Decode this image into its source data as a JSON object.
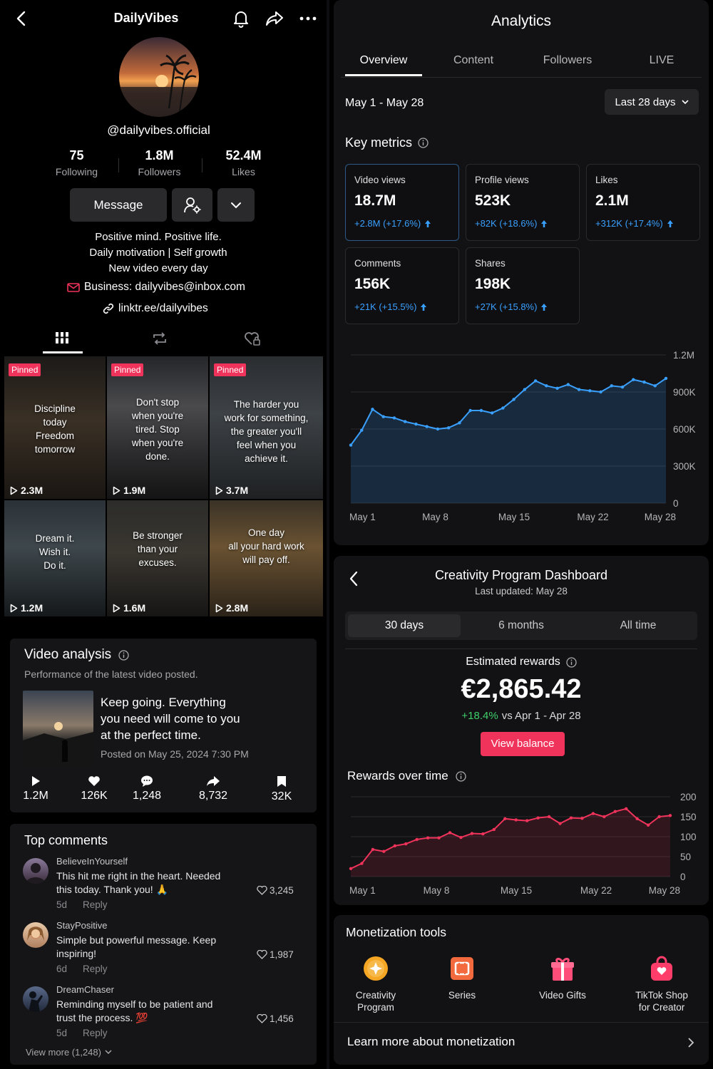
{
  "profile": {
    "title": "DailyVibes",
    "handle": "@dailyvibes.official",
    "stats": [
      {
        "value": "75",
        "label": "Following"
      },
      {
        "value": "1.8M",
        "label": "Followers"
      },
      {
        "value": "52.4M",
        "label": "Likes"
      }
    ],
    "message_label": "Message",
    "bio": [
      "Positive mind. Positive life.",
      "Daily motivation | Self growth",
      "New video every day"
    ],
    "email": "Business: dailyvibes@inbox.com",
    "link": "linktr.ee/dailyvibes"
  },
  "videos": [
    {
      "pinned": "Pinned",
      "quote": [
        "Discipline",
        "today",
        "Freedom",
        "tomorrow"
      ],
      "views": "2.3M"
    },
    {
      "pinned": "Pinned",
      "quote": [
        "Don't stop",
        "when you're",
        "tired. Stop",
        "when you're",
        "done."
      ],
      "views": "1.9M"
    },
    {
      "pinned": "Pinned",
      "quote": [
        "The harder you",
        "work for something,",
        "the greater you'll",
        "feel when you",
        "achieve it."
      ],
      "views": "3.7M"
    },
    {
      "pinned": "",
      "quote": [
        "Dream it.",
        "Wish it.",
        "Do it."
      ],
      "views": "1.2M"
    },
    {
      "pinned": "",
      "quote": [
        "Be stronger",
        "than your",
        "excuses."
      ],
      "views": "1.6M"
    },
    {
      "pinned": "",
      "quote": [
        "One day",
        "all your hard work",
        "will pay off."
      ],
      "views": "2.8M"
    }
  ],
  "video_analysis": {
    "title": "Video analysis",
    "subtitle": "Performance of the latest video posted.",
    "caption": [
      "Keep going. Everything",
      "you need will come to you",
      "at the perfect time."
    ],
    "posted": "Posted on May 25, 2024 7:30 PM",
    "stats": {
      "plays": "1.2M",
      "likes": "126K",
      "comments": "1,248",
      "shares": "8,732",
      "saves": "32K"
    }
  },
  "top_comments": {
    "title": "Top comments",
    "items": [
      {
        "user": "BelieveInYourself",
        "text": [
          "This hit me right in the heart. Needed",
          "this today. Thank you! 🙏"
        ],
        "age": "5d",
        "reply": "Reply",
        "likes": "3,245"
      },
      {
        "user": "StayPositive",
        "text": [
          "Simple but powerful message. Keep",
          "inspiring!"
        ],
        "age": "6d",
        "reply": "Reply",
        "likes": "1,987"
      },
      {
        "user": "DreamChaser",
        "text": [
          "Reminding myself to be patient and",
          "trust the process. 💯"
        ],
        "age": "5d",
        "reply": "Reply",
        "likes": "1,456"
      }
    ],
    "view_more": "View more (1,248)"
  },
  "analytics": {
    "title": "Analytics",
    "tabs": [
      "Overview",
      "Content",
      "Followers",
      "LIVE"
    ],
    "date_range": "May 1 - May 28",
    "range_select": "Last 28 days",
    "key_metrics_title": "Key metrics",
    "metrics": [
      {
        "label": "Video views",
        "value": "18.7M",
        "change": "+2.8M (+17.6%)"
      },
      {
        "label": "Profile views",
        "value": "523K",
        "change": "+82K (+18.6%)"
      },
      {
        "label": "Likes",
        "value": "2.1M",
        "change": "+312K (+17.4%)"
      },
      {
        "label": "Comments",
        "value": "156K",
        "change": "+21K (+15.5%)"
      },
      {
        "label": "Shares",
        "value": "198K",
        "change": "+27K (+15.8%)"
      }
    ],
    "accent": "#3aa0ff"
  },
  "creativity": {
    "title": "Creativity Program Dashboard",
    "updated": "Last updated: May 28",
    "periods": [
      "30 days",
      "6 months",
      "All time"
    ],
    "rewards_label": "Estimated rewards",
    "rewards_value": "€2,865.42",
    "rewards_change": "+18.4%",
    "rewards_compare": "vs Apr 1 - Apr 28",
    "balance_button": "View balance",
    "rewards_chart_title": "Rewards over time",
    "accent": "#f0335a"
  },
  "monetization": {
    "title": "Monetization tools",
    "tools": [
      {
        "label": [
          "Creativity",
          "Program"
        ],
        "icon": "creativity-program-icon"
      },
      {
        "label": [
          "Series"
        ],
        "icon": "series-icon"
      },
      {
        "label": [
          "Video Gifts"
        ],
        "icon": "gift-icon"
      },
      {
        "label": [
          "TikTok Shop",
          "for Creator"
        ],
        "icon": "shop-bag-icon"
      }
    ],
    "learn_more": "Learn more about monetization"
  },
  "chart_data": [
    {
      "type": "area",
      "x_ticks": [
        "May 1",
        "May 8",
        "May 15",
        "May 22",
        "May 28"
      ],
      "y_ticks": [
        "0",
        "300K",
        "600K",
        "900K",
        "1.2M"
      ],
      "ylim": [
        0,
        1200000
      ],
      "grid": true,
      "x": [
        1,
        2,
        3,
        4,
        5,
        6,
        7,
        8,
        9,
        10,
        11,
        12,
        13,
        14,
        15,
        16,
        17,
        18,
        19,
        20,
        21,
        22,
        23,
        24,
        25,
        26,
        27,
        28,
        29,
        30
      ],
      "values": [
        470000,
        590000,
        760000,
        700000,
        690000,
        660000,
        640000,
        620000,
        600000,
        610000,
        650000,
        750000,
        750000,
        730000,
        770000,
        840000,
        920000,
        990000,
        950000,
        930000,
        960000,
        920000,
        910000,
        900000,
        950000,
        940000,
        1000000,
        980000,
        950000,
        1010000
      ]
    },
    {
      "type": "area",
      "x_ticks": [
        "May 1",
        "May 8",
        "May 15",
        "May 22",
        "May 28"
      ],
      "y_ticks": [
        "0",
        "50",
        "100",
        "150",
        "200"
      ],
      "ylim": [
        0,
        200
      ],
      "grid": true,
      "x": [
        1,
        2,
        3,
        4,
        5,
        6,
        7,
        8,
        9,
        10,
        11,
        12,
        13,
        14,
        15,
        16,
        17,
        18,
        19,
        20,
        21,
        22,
        23,
        24,
        25,
        26,
        27,
        28,
        29,
        30
      ],
      "values": [
        20,
        33,
        68,
        63,
        77,
        82,
        93,
        97,
        97,
        110,
        98,
        108,
        107,
        118,
        145,
        142,
        140,
        147,
        150,
        133,
        147,
        146,
        158,
        150,
        163,
        170,
        145,
        129,
        150,
        153
      ]
    }
  ]
}
